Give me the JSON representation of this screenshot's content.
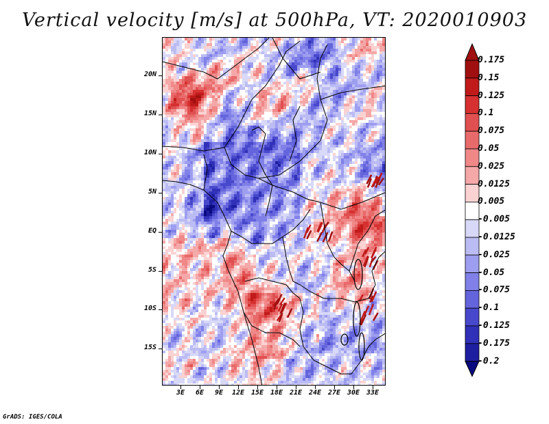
{
  "title": "Vertical velocity [m/s] at 500hPa, VT: 2020010903",
  "credit": "GrADS: IGES/COLA",
  "map": {
    "lat_labels": [
      "20N",
      "15N",
      "10N",
      "5N",
      "EQ",
      "5S",
      "10S",
      "15S"
    ],
    "lon_labels": [
      "3E",
      "6E",
      "9E",
      "12E",
      "15E",
      "18E",
      "21E",
      "24E",
      "27E",
      "30E",
      "33E"
    ],
    "lat_range": [
      -19.5,
      24.5
    ],
    "lon_range": [
      0.5,
      35.5
    ]
  },
  "colorbar": {
    "labels": [
      "0.175",
      "0.15",
      "0.125",
      "0.1",
      "0.075",
      "0.05",
      "0.025",
      "0.0125",
      "0.005",
      "-0.005",
      "-0.0125",
      "-0.025",
      "-0.05",
      "-0.075",
      "-0.1",
      "-0.125",
      "-0.175",
      "-0.2"
    ],
    "colors": [
      "#a01010",
      "#c01a1a",
      "#d63030",
      "#e05050",
      "#e86a6a",
      "#f08888",
      "#f5a8a8",
      "#fbd2d2",
      "#ffffff",
      "#d8d8f8",
      "#bcbcf4",
      "#9e9ef0",
      "#8080e8",
      "#6464dc",
      "#4848cc",
      "#3030b8",
      "#1e1ea0",
      "#0a0a80"
    ]
  }
}
